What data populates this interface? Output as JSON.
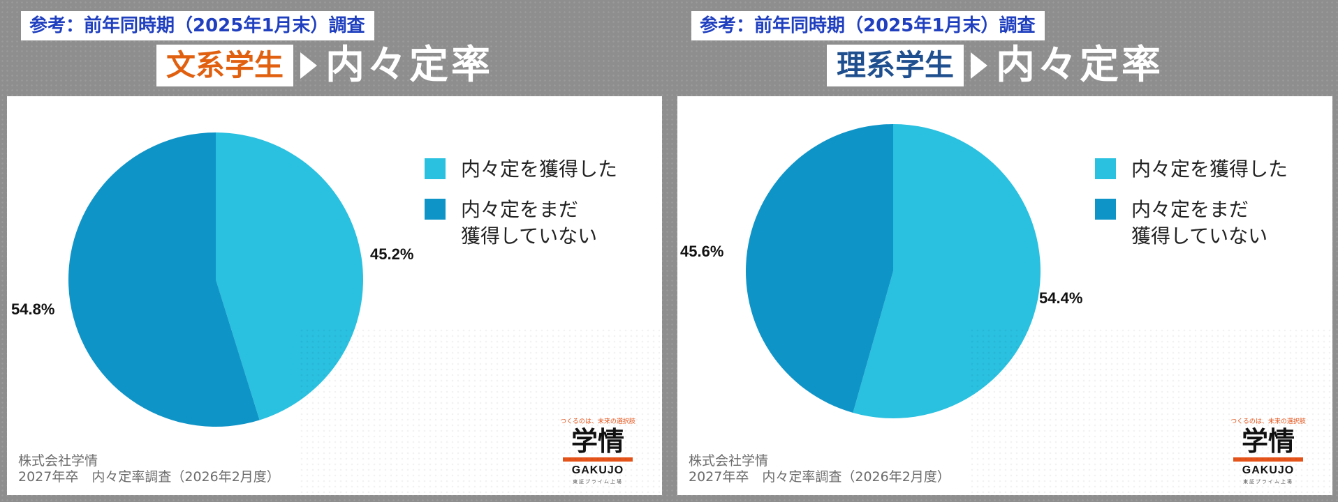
{
  "colors": {
    "obtained": "#2ac0e0",
    "not_obtained": "#0f94c8",
    "left_category": "#e06010",
    "right_category": "#1f4f8e"
  },
  "chart_data": [
    {
      "type": "pie",
      "ref_label": "参考：前年同時期（2025年1月末）調査",
      "category": "文系学生",
      "title": "内々定率",
      "labels": [
        "内々定を獲得した",
        "内々定をまだ\n獲得していない"
      ],
      "values": [
        45.2,
        54.8
      ],
      "value_labels": [
        "45.2%",
        "54.8%"
      ],
      "legend_position": "right",
      "source_line1": "株式会社学情",
      "source_line2": "2027年卒　内々定率調査（2026年2月度）"
    },
    {
      "type": "pie",
      "ref_label": "参考：前年同時期（2025年1月末）調査",
      "category": "理系学生",
      "title": "内々定率",
      "labels": [
        "内々定を獲得した",
        "内々定をまだ\n獲得していない"
      ],
      "values": [
        54.4,
        45.6
      ],
      "value_labels": [
        "54.4%",
        "45.6%"
      ],
      "legend_position": "right",
      "source_line1": "株式会社学情",
      "source_line2": "2027年卒　内々定率調査（2026年2月度）"
    }
  ],
  "logo": {
    "tagline": "つくるのは、未来の選択肢",
    "name": "学情",
    "name_en": "GAKUJO",
    "sub": "東証プライム上場"
  }
}
